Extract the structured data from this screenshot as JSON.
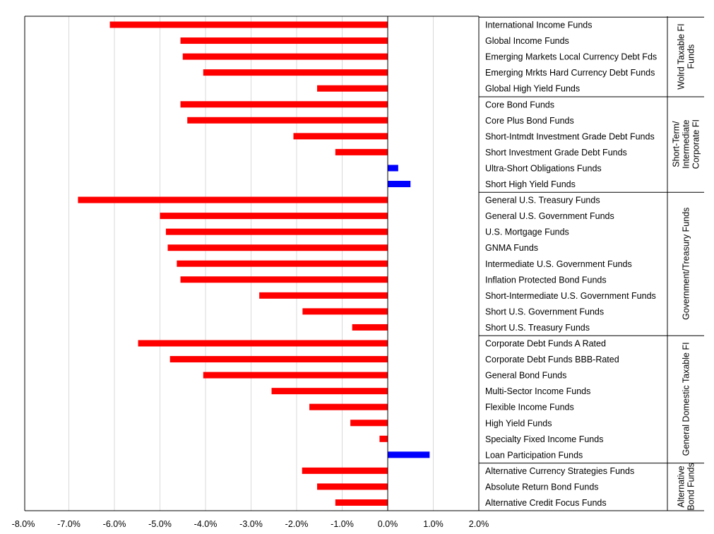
{
  "chart_data": {
    "type": "bar",
    "orientation": "horizontal",
    "title": "",
    "xlabel": "",
    "ylabel": "",
    "xlim": [
      -0.08,
      0.02
    ],
    "x_ticks": [
      "-8.0%",
      "-7.0%",
      "-6.0%",
      "-5.0%",
      "-4.0%",
      "-3.0%",
      "-2.0%",
      "-1.0%",
      "0.0%",
      "1.0%",
      "2.0%"
    ],
    "grid": "vertical",
    "colors": {
      "negative": "#ff0000",
      "positive": "#0000ff"
    },
    "groups": [
      {
        "label": "Wolrd Taxable FI Funds",
        "lines": [
          "Wolrd Taxable FI",
          "Funds"
        ],
        "start": 0,
        "end": 4
      },
      {
        "label": "Short-Term/ Intermediate Corporate FI",
        "lines": [
          "Short-Term/",
          "Intermediate",
          "Corporate FI"
        ],
        "start": 5,
        "end": 10
      },
      {
        "label": "Government/Treasury Funds",
        "lines": [
          "Government/Treasury Funds"
        ],
        "start": 11,
        "end": 19
      },
      {
        "label": "General Domestic Taxable FI",
        "lines": [
          "General Domestic Taxable FI"
        ],
        "start": 20,
        "end": 27
      },
      {
        "label": "Alternative Bond Funds",
        "lines": [
          "Alternative",
          "Bond Funds"
        ],
        "start": 28,
        "end": 30
      }
    ],
    "categories": [
      "International Income Funds",
      "Global Income Funds",
      "Emerging Markets Local Currency Debt Fds",
      "Emerging Mrkts Hard Currency Debt Funds",
      "Global High Yield Funds",
      "Core Bond Funds",
      "Core Plus Bond Funds",
      "Short-Intmdt Investment Grade Debt Funds",
      "Short Investment Grade Debt Funds",
      "Ultra-Short Obligations Funds",
      "Short High Yield Funds",
      "General U.S. Treasury Funds",
      "General U.S. Government Funds",
      "U.S. Mortgage Funds",
      "GNMA Funds",
      "Intermediate U.S. Government Funds",
      "Inflation Protected Bond Funds",
      "Short-Intermediate U.S. Government Funds",
      "Short U.S. Government Funds",
      "Short U.S. Treasury Funds",
      "Corporate Debt Funds A Rated",
      "Corporate Debt Funds BBB-Rated",
      "General Bond Funds",
      "Multi-Sector Income Funds",
      "Flexible Income Funds",
      "High Yield Funds",
      "Specialty Fixed Income Funds",
      "Loan Participation Funds",
      "Alternative Currency Strategies Funds",
      "Absolute Return Bond Funds",
      "Alternative Credit Focus Funds"
    ],
    "values": [
      -0.061,
      -0.0455,
      -0.045,
      -0.0405,
      -0.0155,
      -0.0455,
      -0.044,
      -0.0207,
      -0.0115,
      0.0023,
      0.005,
      -0.068,
      -0.05,
      -0.0487,
      -0.0483,
      -0.0463,
      -0.0455,
      -0.0282,
      -0.0187,
      -0.0078,
      -0.0548,
      -0.0478,
      -0.0405,
      -0.0255,
      -0.0172,
      -0.0082,
      -0.0018,
      0.0092,
      -0.0188,
      -0.0155,
      -0.0115
    ]
  }
}
